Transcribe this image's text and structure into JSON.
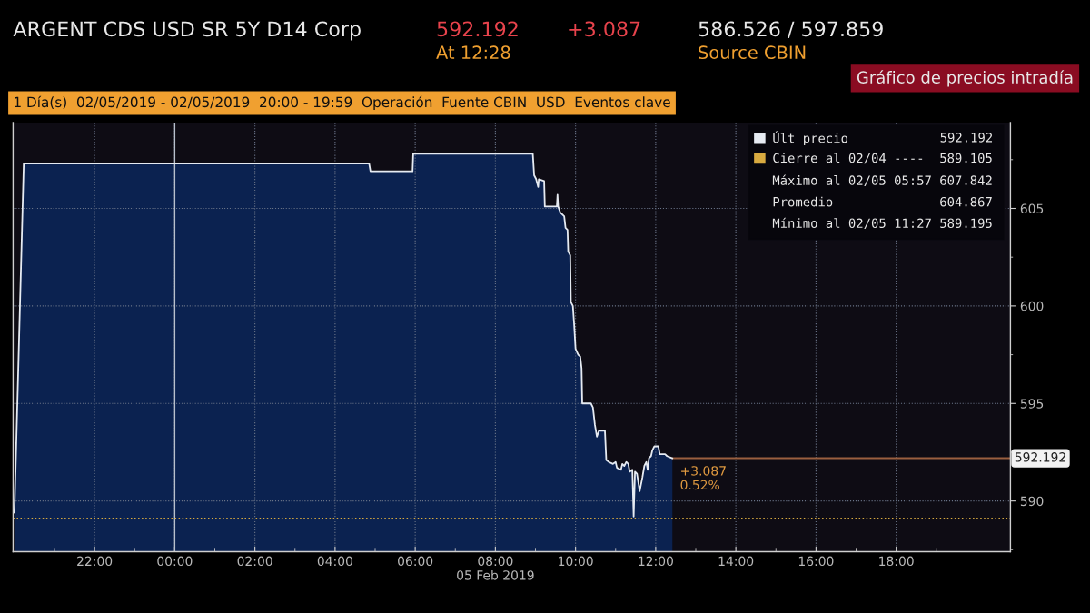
{
  "chart_data": {
    "type": "area",
    "title": "ARGENT CDS USD SR 5Y D14 Corp",
    "subtitle": "Gráfico de precios intradía",
    "x": [
      "2019-02-04T20:00",
      "2019-02-04T20:14",
      "2019-02-05T04:51",
      "2019-02-05T04:53",
      "2019-02-05T05:56",
      "2019-02-05T05:57",
      "2019-02-05T06:58",
      "2019-02-05T07:00",
      "2019-02-05T08:56",
      "2019-02-05T08:58",
      "2019-02-05T09:01",
      "2019-02-05T09:04",
      "2019-02-05T09:05",
      "2019-02-05T09:13",
      "2019-02-05T09:14",
      "2019-02-05T09:32",
      "2019-02-05T09:33",
      "2019-02-05T09:34",
      "2019-02-05T09:37",
      "2019-02-05T09:43",
      "2019-02-05T09:45",
      "2019-02-05T09:48",
      "2019-02-05T09:49",
      "2019-02-05T09:52",
      "2019-02-05T09:53",
      "2019-02-05T09:56",
      "2019-02-05T09:58",
      "2019-02-05T10:00",
      "2019-02-05T10:04",
      "2019-02-05T10:07",
      "2019-02-05T10:09",
      "2019-02-05T10:10",
      "2019-02-05T10:23",
      "2019-02-05T10:26",
      "2019-02-05T10:29",
      "2019-02-05T10:32",
      "2019-02-05T10:35",
      "2019-02-05T10:38",
      "2019-02-05T10:44",
      "2019-02-05T10:46",
      "2019-02-05T10:50",
      "2019-02-05T10:56",
      "2019-02-05T11:00",
      "2019-02-05T11:02",
      "2019-02-05T11:08",
      "2019-02-05T11:10",
      "2019-02-05T11:13",
      "2019-02-05T11:16",
      "2019-02-05T11:19",
      "2019-02-05T11:21",
      "2019-02-05T11:25",
      "2019-02-05T11:27",
      "2019-02-05T11:29",
      "2019-02-05T11:32",
      "2019-02-05T11:36",
      "2019-02-05T11:40",
      "2019-02-05T11:43",
      "2019-02-05T11:46",
      "2019-02-05T11:48",
      "2019-02-05T11:50",
      "2019-02-05T11:53",
      "2019-02-05T11:55",
      "2019-02-05T11:58",
      "2019-02-05T12:04",
      "2019-02-05T12:06",
      "2019-02-05T12:14",
      "2019-02-05T12:17",
      "2019-02-05T12:25"
    ],
    "series": [
      {
        "name": "Últ precio",
        "color": "#e6ebf2",
        "values": [
          589.4,
          607.3,
          607.3,
          606.9,
          606.9,
          607.8,
          607.8,
          607.8,
          607.8,
          606.7,
          606.5,
          606.1,
          606.5,
          606.4,
          605.1,
          605.1,
          605.7,
          605.1,
          604.8,
          604.6,
          604.0,
          603.9,
          602.8,
          602.6,
          600.2,
          600.0,
          599.0,
          597.8,
          597.5,
          597.4,
          596.8,
          595.0,
          595.0,
          594.8,
          593.9,
          593.3,
          593.6,
          593.6,
          593.6,
          592.1,
          592.0,
          591.9,
          592.0,
          591.7,
          591.6,
          591.9,
          591.8,
          592.0,
          591.9,
          591.5,
          591.6,
          589.2,
          591.5,
          591.4,
          590.5,
          591.2,
          591.8,
          592.0,
          591.6,
          592.2,
          592.3,
          592.6,
          592.8,
          592.8,
          592.4,
          592.4,
          592.3,
          592.192
        ]
      }
    ],
    "xlim": [
      "2019-02-04T19:58",
      "2019-02-05T20:51"
    ],
    "xticks": [
      {
        "value": "2019-02-04T22:00",
        "label": "22:00"
      },
      {
        "value": "2019-02-05T00:00",
        "label": "00:00"
      },
      {
        "value": "2019-02-05T02:00",
        "label": "02:00"
      },
      {
        "value": "2019-02-05T04:00",
        "label": "04:00"
      },
      {
        "value": "2019-02-05T06:00",
        "label": "06:00"
      },
      {
        "value": "2019-02-05T08:00",
        "label": "08:00\n05 Feb 2019"
      },
      {
        "value": "2019-02-05T10:00",
        "label": "10:00"
      },
      {
        "value": "2019-02-05T12:00",
        "label": "12:00"
      },
      {
        "value": "2019-02-05T14:00",
        "label": "14:00"
      },
      {
        "value": "2019-02-05T16:00",
        "label": "16:00"
      },
      {
        "value": "2019-02-05T18:00",
        "label": "18:00"
      }
    ],
    "ylim": [
      587.4,
      609.4
    ],
    "yticks": [
      590,
      595,
      600,
      605
    ],
    "grid": true,
    "legend": "top right",
    "ref_lines": [
      {
        "axis": "y",
        "value": 589.105,
        "label": "Cierre al 02/04 ---- 589.105",
        "color": "#d8aa40",
        "line_style": "dotted"
      },
      {
        "axis": "y",
        "value": 592.192,
        "color": "#9a5f3f",
        "line_style": "solid"
      },
      {
        "axis": "x",
        "value": "2019-02-05T00:00",
        "color": "#b8c0cc",
        "line_style": "solid"
      }
    ],
    "annotations": [
      "592.192",
      "+3.087",
      "586.526 / 597.859",
      "At 12:28",
      "Source CBIN",
      "1 Día(s)  02/05/2019 - 02/05/2019  20:00 - 19:59  Operación  Fuente CBIN  USD  Eventos clave",
      "Máximo al 02/05 05:57 607.842",
      "Promedio 604.867",
      "Mínimo al 02/05 11:27 589.195",
      {
        "text": "+3.087\n0.52%",
        "x": "2019-02-05T12:25",
        "y": 592.192
      }
    ]
  }
}
